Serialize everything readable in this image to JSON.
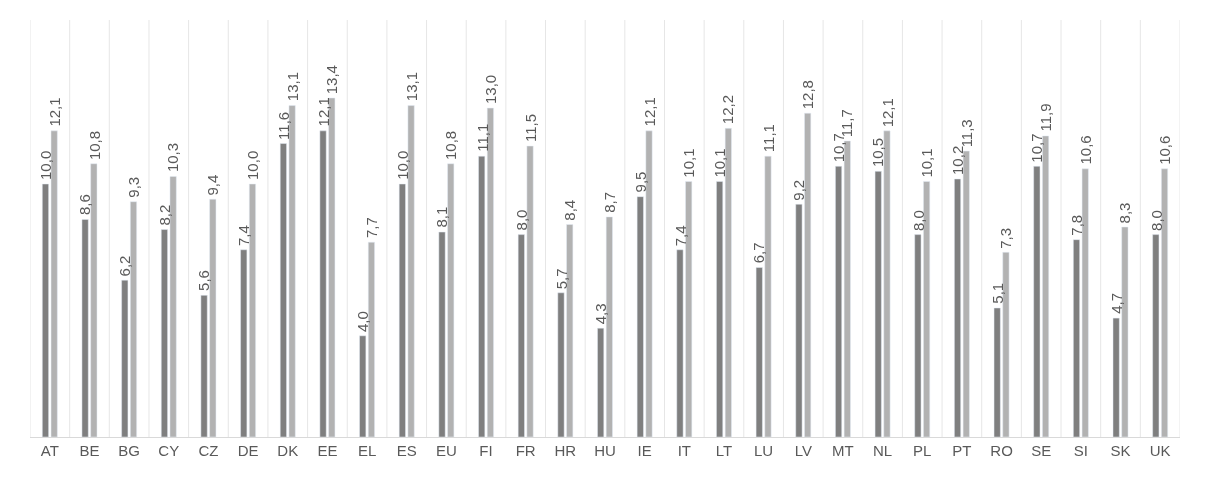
{
  "chart_data": {
    "type": "bar",
    "categories": [
      "AT",
      "BE",
      "BG",
      "CY",
      "CZ",
      "DE",
      "DK",
      "EE",
      "EL",
      "ES",
      "EU",
      "FI",
      "FR",
      "HR",
      "HU",
      "IE",
      "IT",
      "LT",
      "LU",
      "LV",
      "MT",
      "NL",
      "PL",
      "PT",
      "RO",
      "SE",
      "SI",
      "SK",
      "UK"
    ],
    "series": [
      {
        "color": "#7f7f7f",
        "values": [
          10.0,
          8.6,
          6.2,
          8.2,
          5.6,
          7.4,
          11.6,
          12.1,
          4.0,
          10.0,
          8.1,
          11.1,
          8.0,
          5.7,
          4.3,
          9.5,
          7.4,
          10.1,
          6.7,
          9.2,
          10.7,
          10.5,
          8.0,
          10.2,
          5.1,
          10.7,
          7.8,
          4.7,
          8.0
        ],
        "value_labels": [
          "10,0",
          "8,6",
          "6,2",
          "8,2",
          "5,6",
          "7,4",
          "11,6",
          "12,1",
          "4,0",
          "10,0",
          "8,1",
          "11,1",
          "8,0",
          "5,7",
          "4,3",
          "9,5",
          "7,4",
          "10,1",
          "6,7",
          "9,2",
          "10,7",
          "10,5",
          "8,0",
          "10,2",
          "5,1",
          "10,7",
          "7,8",
          "4,7",
          "8,0"
        ]
      },
      {
        "color": "#b2b2b2",
        "values": [
          12.1,
          10.8,
          9.3,
          10.3,
          9.4,
          10.0,
          13.1,
          13.4,
          7.7,
          13.1,
          10.8,
          13.0,
          11.5,
          8.4,
          8.7,
          12.1,
          10.1,
          12.2,
          11.1,
          12.8,
          11.7,
          12.1,
          10.1,
          11.3,
          7.3,
          11.9,
          10.6,
          8.3,
          10.6
        ],
        "value_labels": [
          "12,1",
          "10,8",
          "9,3",
          "10,3",
          "9,4",
          "10,0",
          "13,1",
          "13,4",
          "7,7",
          "13,1",
          "10,8",
          "13,0",
          "11,5",
          "8,4",
          "8,7",
          "12,1",
          "10,1",
          "12,2",
          "11,1",
          "12,8",
          "11,7",
          "12,1",
          "10,1",
          "11,3",
          "7,3",
          "11,9",
          "10,6",
          "8,3",
          "10,6"
        ]
      }
    ]
  }
}
